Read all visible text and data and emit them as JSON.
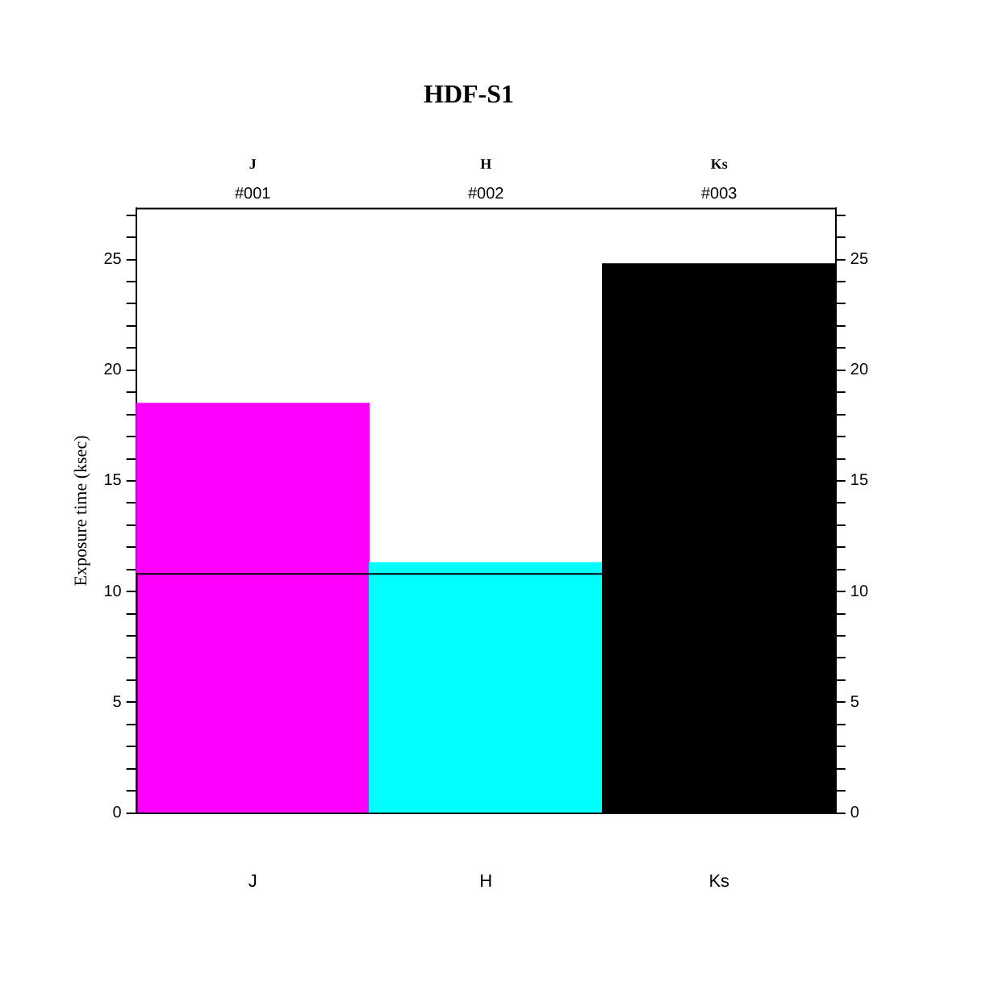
{
  "chart_data": {
    "type": "bar",
    "title": "HDF-S1",
    "ylabel": "Exposure time (ksec)",
    "categories": [
      "J",
      "H",
      "Ks"
    ],
    "values": [
      18.5,
      11.3,
      24.8
    ],
    "colors": [
      "#ff00ff",
      "#00ffff",
      "#000000"
    ],
    "ylim": [
      0,
      27.3
    ],
    "yticks": [
      0,
      {
        "value": 1,
        "label": null
      },
      {
        "value": 2,
        "label": null
      },
      {
        "value": 3,
        "label": null
      },
      {
        "value": 4,
        "label": null
      },
      5,
      {
        "value": 6,
        "label": null
      },
      {
        "value": 7,
        "label": null
      },
      {
        "value": 8,
        "label": null
      },
      {
        "value": 9,
        "label": null
      },
      10,
      {
        "value": 11,
        "label": null
      },
      {
        "value": 12,
        "label": null
      },
      {
        "value": 13,
        "label": null
      },
      {
        "value": 14,
        "label": null
      },
      15,
      {
        "value": 16,
        "label": null
      },
      {
        "value": 17,
        "label": null
      },
      {
        "value": 18,
        "label": null
      },
      {
        "value": 19,
        "label": null
      },
      20,
      {
        "value": 21,
        "label": null
      },
      {
        "value": 22,
        "label": null
      },
      {
        "value": 23,
        "label": null
      },
      {
        "value": 24,
        "label": null
      },
      25,
      {
        "value": 26,
        "label": null
      },
      {
        "value": 27,
        "label": null
      }
    ],
    "y2lim": [
      0,
      27.3
    ],
    "y2ticks": [
      0,
      {
        "value": 1,
        "label": null
      },
      {
        "value": 2,
        "label": null
      },
      {
        "value": 3,
        "label": null
      },
      {
        "value": 4,
        "label": null
      },
      5,
      {
        "value": 6,
        "label": null
      },
      {
        "value": 7,
        "label": null
      },
      {
        "value": 8,
        "label": null
      },
      {
        "value": 9,
        "label": null
      },
      10,
      {
        "value": 11,
        "label": null
      },
      {
        "value": 12,
        "label": null
      },
      {
        "value": 13,
        "label": null
      },
      {
        "value": 14,
        "label": null
      },
      15,
      {
        "value": 16,
        "label": null
      },
      {
        "value": 17,
        "label": null
      },
      {
        "value": 18,
        "label": null
      },
      {
        "value": 19,
        "label": null
      },
      20,
      {
        "value": 21,
        "label": null
      },
      {
        "value": 22,
        "label": null
      },
      {
        "value": 23,
        "label": null
      },
      {
        "value": 24,
        "label": null
      },
      25,
      {
        "value": 26,
        "label": null
      },
      {
        "value": 27,
        "label": null
      }
    ],
    "ref_lines": [
      {
        "axis": "y",
        "value": 10.8,
        "color": "#000000"
      }
    ],
    "annotations": [
      "J",
      "#001",
      "H",
      "#002",
      "Ks",
      "#003"
    ],
    "grid": false,
    "legend": false
  }
}
